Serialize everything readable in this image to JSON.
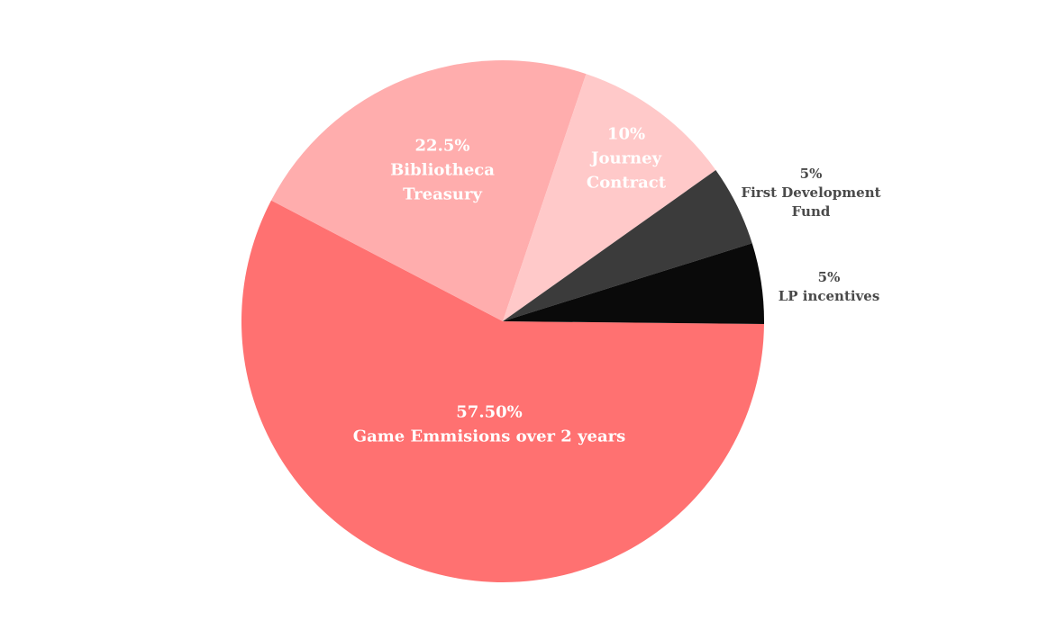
{
  "chart_data": {
    "type": "pie",
    "title": "",
    "slices": [
      {
        "value": 57.5,
        "percent_label": "57.50%",
        "name_lines": [
          "Game Emmisions over 2 years"
        ],
        "color": "#ff7171"
      },
      {
        "value": 22.5,
        "percent_label": "22.5%",
        "name_lines": [
          "Bibliotheca",
          "Treasury"
        ],
        "color": "#ffadad"
      },
      {
        "value": 10,
        "percent_label": "10%",
        "name_lines": [
          "Journey",
          "Contract"
        ],
        "color": "#ffc9c9"
      },
      {
        "value": 5,
        "percent_label": "5%",
        "name_lines": [
          "First Development",
          "Fund"
        ],
        "color": "#3b3b3b"
      },
      {
        "value": 5,
        "percent_label": "5%",
        "name_lines": [
          "LP incentives"
        ],
        "color": "#0a0a0a"
      }
    ]
  }
}
